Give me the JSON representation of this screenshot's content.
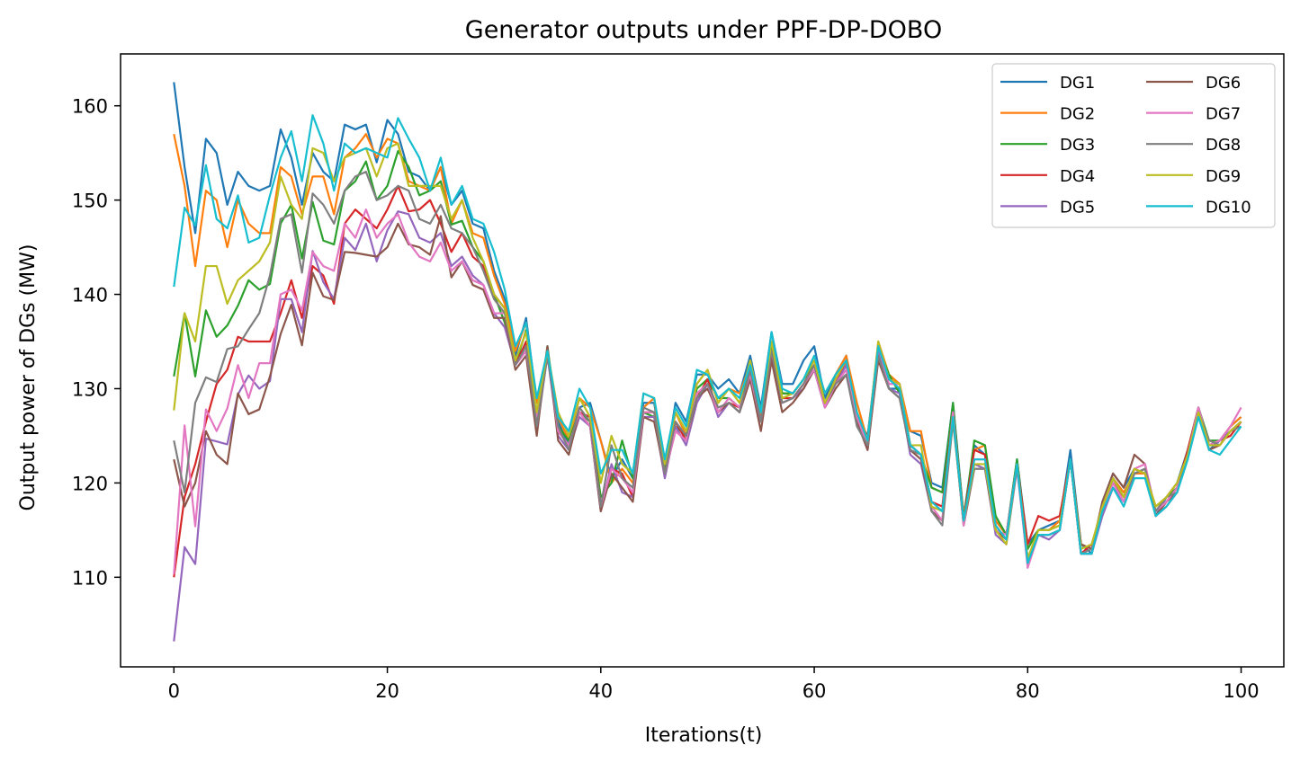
{
  "chart_data": {
    "type": "line",
    "title": "Generator outputs under PPF-DP-DOBO",
    "xlabel": "Iterations(t)",
    "ylabel": "Output power of DGs (MW)",
    "xlim": [
      -5,
      104
    ],
    "ylim": [
      100.5,
      165.5
    ],
    "x_ticks": [
      0,
      20,
      40,
      60,
      80,
      100
    ],
    "y_ticks": [
      110,
      120,
      130,
      140,
      150,
      160
    ],
    "grid": false,
    "legend": {
      "position": "top-right",
      "columns": 2
    },
    "series": [
      {
        "name": "DG1",
        "color": "#1f77b4",
        "values": [
          162.5,
          153.5,
          146.5,
          156.5,
          155,
          149.5,
          153,
          151.5,
          151,
          151.5,
          157.5,
          154.5,
          149.5,
          155,
          153,
          152,
          158,
          157.5,
          158,
          154,
          158.5,
          157,
          153,
          152.5,
          151,
          153.5,
          149.5,
          151,
          147.5,
          147,
          142.5,
          139.5,
          133.5,
          137.5,
          128.5,
          133.5,
          126.5,
          124,
          128,
          128.5,
          124.5,
          120.5,
          122.5,
          120.5,
          128.5,
          128.5,
          121.5,
          128.5,
          126.5,
          131.5,
          131.5,
          130,
          131,
          129.5,
          133.5,
          128,
          136,
          130.5,
          130.5,
          133,
          134.5,
          129,
          131.5,
          133.5,
          127,
          125,
          134.5,
          130,
          130,
          125.5,
          125,
          120,
          119.5,
          128.5,
          116.5,
          124,
          123,
          116,
          114.5,
          122.5,
          113.5,
          115,
          115.5,
          116,
          123.5,
          113.5,
          112.5,
          118,
          121,
          119.5,
          121.5,
          121,
          116.5,
          118.5,
          120,
          123.5,
          127.5,
          123.5,
          124.5,
          126,
          127
        ]
      },
      {
        "name": "DG2",
        "color": "#ff7f0e",
        "values": [
          157,
          151.5,
          143,
          151,
          150,
          145,
          150,
          147.5,
          146.5,
          146.5,
          153.5,
          152.5,
          148.5,
          152.5,
          152.5,
          148.5,
          154.5,
          155.5,
          157,
          154.5,
          156.5,
          156,
          152,
          151.5,
          151,
          153.5,
          147.5,
          150,
          146.5,
          146,
          142,
          139,
          134,
          137,
          128.5,
          134,
          127,
          124.5,
          129,
          128,
          124.5,
          120,
          121.5,
          120,
          128,
          129,
          121,
          127.5,
          125,
          130.5,
          132,
          128.5,
          130,
          129.5,
          132.5,
          127,
          135,
          129.5,
          129.5,
          131,
          133,
          129.5,
          131.5,
          133.5,
          128.5,
          124.5,
          135,
          131.5,
          130.5,
          125.5,
          125.5,
          119.5,
          119,
          127.5,
          116.5,
          123.5,
          124,
          116,
          114.5,
          122,
          113,
          115,
          115,
          116,
          122.5,
          113.5,
          113,
          117.5,
          120.5,
          119,
          121,
          121,
          117.5,
          118.5,
          120,
          123,
          127.5,
          124,
          124.5,
          126,
          127
        ]
      },
      {
        "name": "DG3",
        "color": "#2ca02c",
        "values": [
          131.3,
          138,
          131.3,
          138.3,
          135.5,
          136.7,
          138.8,
          141.5,
          140.5,
          141.1,
          147.5,
          149.5,
          143.8,
          149.8,
          145.7,
          145.3,
          151,
          152,
          154.1,
          150,
          151.5,
          155.2,
          153.5,
          150.5,
          151,
          152,
          147.4,
          147.8,
          145,
          143.5,
          140,
          137,
          132.5,
          136.2,
          126.3,
          134.5,
          126,
          124.5,
          127.5,
          126.5,
          118.5,
          120,
          124.5,
          120.5,
          127.5,
          127,
          121.5,
          126,
          125,
          130,
          131,
          129,
          129,
          128,
          132,
          126.5,
          134.5,
          129.5,
          129.5,
          131,
          132.5,
          128.5,
          131,
          133,
          127,
          124,
          134.5,
          131.5,
          129.5,
          124,
          123,
          119.5,
          119,
          128.5,
          116,
          124.5,
          124,
          116.5,
          114.5,
          122.5,
          113,
          115,
          115,
          115.5,
          122.5,
          112.5,
          112.5,
          117,
          120.5,
          118.5,
          121,
          121.5,
          117,
          118.5,
          119.5,
          123.5,
          128,
          124.5,
          124.5,
          125.5,
          126.5
        ]
      },
      {
        "name": "DG4",
        "color": "#d62728",
        "values": [
          110,
          118.5,
          122,
          126.5,
          130.5,
          132,
          135.5,
          135,
          135,
          135,
          138,
          141.5,
          137.5,
          143,
          142,
          139,
          147.5,
          149,
          148,
          147,
          149,
          151.5,
          148.8,
          149,
          150,
          147.5,
          144.5,
          146.5,
          144,
          143,
          140,
          138.5,
          132.5,
          135,
          125.5,
          134,
          125.5,
          124,
          127.5,
          127,
          117.5,
          121.5,
          121,
          118.5,
          127.5,
          127.5,
          121,
          126.5,
          124.5,
          129,
          131,
          127.5,
          128.5,
          128,
          131,
          126.5,
          133.5,
          129,
          129,
          130.5,
          132.5,
          128.5,
          130.5,
          133,
          127,
          124,
          133.5,
          131,
          130.5,
          124,
          123,
          118,
          117.5,
          127.5,
          116,
          123.5,
          123,
          115,
          114,
          122,
          113.5,
          116.5,
          116,
          116.5,
          122.5,
          112.5,
          113.5,
          117,
          120,
          118.5,
          121.5,
          121,
          116.5,
          118,
          119.5,
          123.5,
          128,
          124,
          124.5,
          125,
          126.5
        ]
      },
      {
        "name": "DG5",
        "color": "#9467bd",
        "values": [
          103.2,
          113.2,
          111.4,
          124.7,
          124.4,
          124.1,
          129.4,
          131.4,
          130,
          130.8,
          139.5,
          139.5,
          136,
          144.6,
          141.3,
          139.5,
          146,
          144.7,
          147.5,
          143.5,
          146.8,
          148.8,
          148.5,
          146,
          145.5,
          146.5,
          143,
          144,
          142,
          141,
          138,
          136.5,
          132.5,
          134,
          125.5,
          133.5,
          125,
          123.5,
          127,
          126,
          117,
          122,
          119,
          118.5,
          127,
          127,
          120.5,
          126,
          124,
          128.5,
          130.5,
          127,
          128.5,
          127.5,
          131,
          126.5,
          133,
          128.5,
          129,
          130,
          132,
          128,
          130.5,
          132.5,
          126.5,
          123.5,
          134,
          130,
          129.5,
          123,
          122,
          117,
          116,
          127.5,
          115.5,
          122,
          121.5,
          114.5,
          113.5,
          121.5,
          111.5,
          114.5,
          114,
          115,
          122.5,
          112.5,
          112.5,
          116.5,
          119.5,
          118,
          121,
          121.5,
          116.5,
          117.5,
          119,
          123,
          128,
          124,
          124.5,
          125.5,
          126.5
        ]
      },
      {
        "name": "DG6",
        "color": "#8c564b",
        "values": [
          122.5,
          117.5,
          120,
          125.5,
          123,
          122,
          129.5,
          127.3,
          127.8,
          131.3,
          135.8,
          138.9,
          134.6,
          142.3,
          139.8,
          139.4,
          144.5,
          144.4,
          144.2,
          144,
          145,
          147.5,
          145.3,
          145,
          144.2,
          148.3,
          141.8,
          143.5,
          141,
          140.5,
          137.5,
          137.5,
          132,
          133.5,
          125,
          134.5,
          124.5,
          123,
          127.5,
          126,
          117,
          121,
          119.5,
          118,
          127,
          126.5,
          121,
          125.5,
          124.5,
          129,
          130,
          127.5,
          128.5,
          127.5,
          131,
          125.5,
          133,
          127.5,
          128.5,
          130,
          132,
          128,
          130,
          131.5,
          126.5,
          123.5,
          133,
          130,
          129,
          123.5,
          122.5,
          117,
          116,
          127,
          115.5,
          121.5,
          121.5,
          115,
          114,
          122,
          112,
          114.5,
          114.5,
          115,
          122.5,
          113.5,
          113,
          118,
          121,
          119.5,
          123,
          122,
          116.5,
          118,
          119,
          123,
          128,
          123.5,
          124,
          125.5,
          126.5
        ]
      },
      {
        "name": "DG7",
        "color": "#e377c2",
        "values": [
          110.3,
          126.1,
          115.4,
          127.8,
          125.5,
          127.9,
          132.5,
          129,
          132.7,
          132.7,
          140,
          140.5,
          138.3,
          144.5,
          143,
          142.5,
          147.5,
          146,
          149,
          146,
          147.5,
          148.5,
          145.5,
          144,
          143.5,
          145.5,
          142.5,
          143.5,
          141.5,
          141,
          138,
          138,
          132.5,
          134,
          127,
          134,
          125.5,
          124,
          127.5,
          126,
          117.5,
          121.5,
          120.5,
          119,
          127.5,
          127.5,
          121,
          125.5,
          124.5,
          129.5,
          130.5,
          127.5,
          129,
          128,
          131.5,
          126.5,
          134,
          128.5,
          129,
          130.5,
          132,
          128,
          130.5,
          132,
          127,
          124,
          134.5,
          130.5,
          130.5,
          124,
          123,
          117.5,
          116,
          127.5,
          115.5,
          122.5,
          122.5,
          115,
          114.5,
          122,
          111,
          114.5,
          114.5,
          115,
          122.5,
          112.5,
          113,
          117,
          120,
          118,
          121.5,
          122,
          117,
          118,
          119.5,
          123,
          128,
          124,
          124.5,
          126,
          128
        ]
      },
      {
        "name": "DG8",
        "color": "#7f7f7f",
        "values": [
          124.5,
          119,
          128.5,
          131.2,
          130.7,
          134.2,
          134.5,
          136.3,
          138,
          142,
          148,
          148.5,
          142.3,
          150.7,
          149.5,
          147.5,
          151,
          152.5,
          153,
          150,
          150.5,
          151.5,
          151,
          148,
          147.5,
          149.5,
          147,
          146.5,
          145,
          142.5,
          139.5,
          138,
          132.5,
          134.5,
          126,
          133.5,
          126,
          123.5,
          128,
          126.5,
          117.5,
          124,
          120.5,
          119.5,
          128,
          127.5,
          121,
          126.5,
          125,
          129,
          130.5,
          128,
          128.5,
          127.5,
          132,
          126.5,
          134,
          128.5,
          129,
          130.5,
          132.5,
          128.5,
          130.5,
          131.5,
          126,
          124,
          133.5,
          130,
          129,
          123.5,
          123,
          117,
          115.5,
          126.5,
          116,
          121.5,
          121.5,
          115.5,
          114,
          122,
          112,
          114.5,
          114.5,
          115,
          122.5,
          112.5,
          113,
          117.5,
          120.5,
          118.5,
          121,
          121.5,
          117,
          118.5,
          119,
          123,
          127.5,
          124.5,
          124,
          125.5,
          126
        ]
      },
      {
        "name": "DG9",
        "color": "#bcbd22",
        "values": [
          127.7,
          138,
          135,
          143,
          143,
          139,
          141.5,
          142.5,
          143.5,
          145.5,
          152.5,
          149.5,
          148,
          155.5,
          155,
          152,
          154.5,
          155,
          155.5,
          152.5,
          155.5,
          156,
          151.5,
          151.5,
          151.5,
          151.5,
          148,
          150,
          146,
          143.5,
          140,
          138.5,
          133,
          136,
          127.5,
          134,
          127.5,
          125,
          129,
          127,
          120,
          125,
          122,
          121,
          129.5,
          129,
          122,
          127.5,
          125.5,
          130.5,
          132,
          128.5,
          130,
          128.5,
          133,
          127.5,
          135,
          129,
          129.5,
          131,
          133,
          128.5,
          131,
          133,
          127.5,
          124.5,
          135,
          131,
          130.5,
          124,
          124,
          117.5,
          117,
          127,
          116,
          122,
          122,
          115,
          113.5,
          122,
          112,
          115,
          115,
          115.5,
          122.5,
          113,
          113.5,
          117.5,
          120.5,
          118.5,
          121.5,
          121,
          117.5,
          118.5,
          120,
          123,
          127.5,
          124,
          124,
          125.5,
          126.5
        ]
      },
      {
        "name": "DG10",
        "color": "#17becf",
        "values": [
          140.8,
          149.2,
          147.3,
          153.7,
          148,
          147,
          150.5,
          145.5,
          146,
          150.5,
          154.5,
          157.3,
          152,
          159,
          156,
          151,
          156,
          155,
          155.5,
          155,
          154.5,
          158.7,
          156.5,
          154.5,
          151,
          154.5,
          149.5,
          151.5,
          148,
          147.5,
          144.5,
          140.5,
          134.5,
          137,
          129,
          134,
          127,
          125.5,
          130,
          128,
          121,
          123.5,
          123.5,
          121,
          129.5,
          129,
          122.5,
          128,
          126,
          132,
          131.5,
          129,
          130,
          129,
          132.5,
          127.5,
          136,
          130,
          129.5,
          131,
          133.5,
          129.5,
          131.5,
          133,
          127.5,
          124.5,
          134.5,
          131,
          130,
          124,
          123,
          118,
          117,
          127,
          116,
          122.5,
          122.5,
          115.5,
          114,
          122,
          111.5,
          114.5,
          114.5,
          115,
          122.5,
          112.5,
          112.5,
          117,
          119.5,
          117.5,
          120.5,
          120.5,
          116.5,
          117.5,
          119,
          122.5,
          127,
          123.5,
          123,
          124.5,
          126
        ]
      }
    ]
  }
}
